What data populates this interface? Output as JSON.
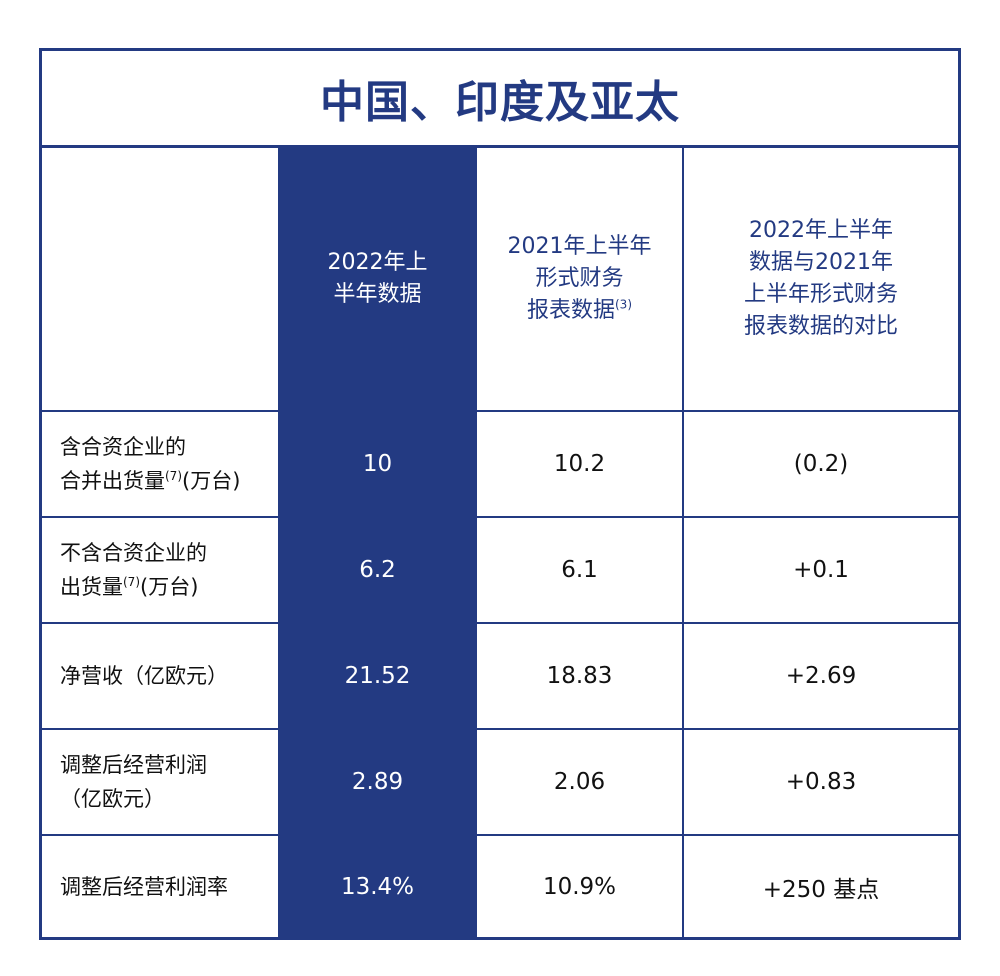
{
  "title": "中国、印度及亚太",
  "columns": {
    "col1": {
      "line1": "2022年上",
      "line2": "半年数据"
    },
    "col2": {
      "line1": "2021年上半年",
      "line2": "形式财务",
      "line3": "报表数据",
      "note": "(3)"
    },
    "col3": {
      "line1": "2022年上半年",
      "line2": "数据与2021年",
      "line3": "上半年形式财务",
      "line4": "报表数据的对比"
    }
  },
  "rows": [
    {
      "label_line1": "含合资企业的",
      "label_line2a": "合并出货量",
      "label_note": "(7)",
      "label_line2b": "(万台)",
      "v1": "10",
      "v2": "10.2",
      "v3": "(0.2)"
    },
    {
      "label_line1": "不含合资企业的",
      "label_line2a": "出货量",
      "label_note": "(7)",
      "label_line2b": "(万台)",
      "v1": "6.2",
      "v2": "6.1",
      "v3": "+0.1"
    },
    {
      "label_line1": "净营收（亿欧元）",
      "v1": "21.52",
      "v2": "18.83",
      "v3": "+2.69"
    },
    {
      "label_line1": "调整后经营利润",
      "label_line2a": "（亿欧元）",
      "v1": "2.89",
      "v2": "2.06",
      "v3": "+0.83"
    },
    {
      "label_line1": "调整后经营利润率",
      "v1": "13.4%",
      "v2": "10.9%",
      "v3": "+250 基点"
    }
  ],
  "colors": {
    "accent": "#233a82",
    "highlight_text": "#ffffff",
    "body_text": "#111111"
  }
}
